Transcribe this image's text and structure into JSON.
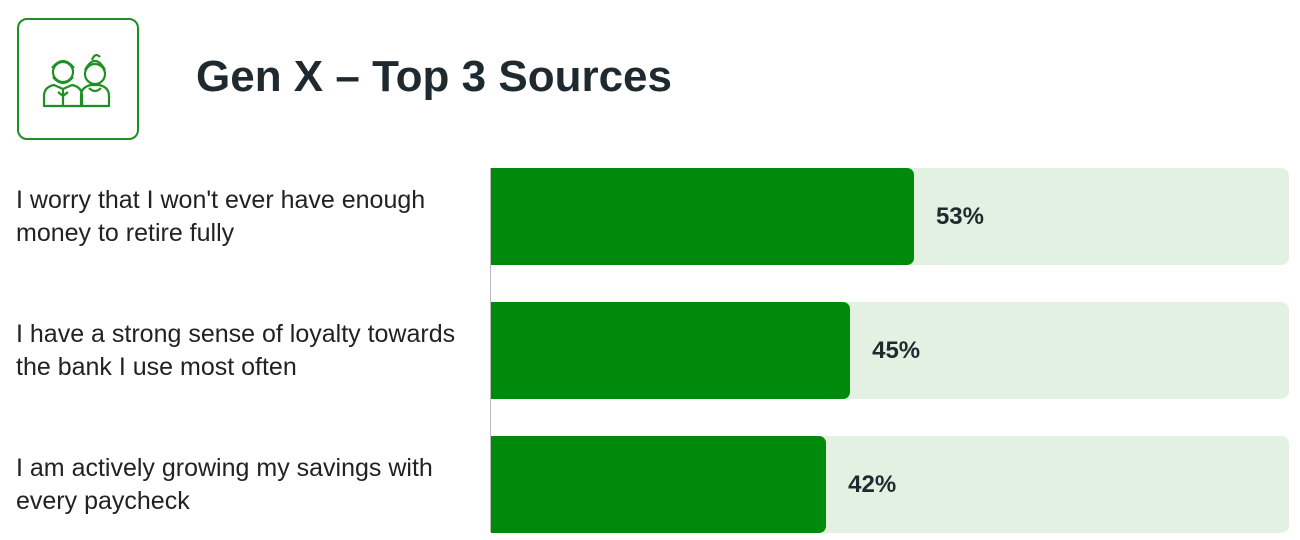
{
  "chart_data": {
    "type": "hbar",
    "title": "Gen X – Top 3 Sources",
    "categories": [
      "I worry that I won't ever have enough money to retire fully",
      "I have a strong sense of loyalty towards the bank I use most often",
      "I am actively growing my savings with every paycheck"
    ],
    "values": [
      53,
      45,
      42
    ],
    "value_labels": [
      "53%",
      "45%",
      "42%"
    ],
    "color": "#008a0c",
    "xlim": [
      0,
      100
    ]
  }
}
